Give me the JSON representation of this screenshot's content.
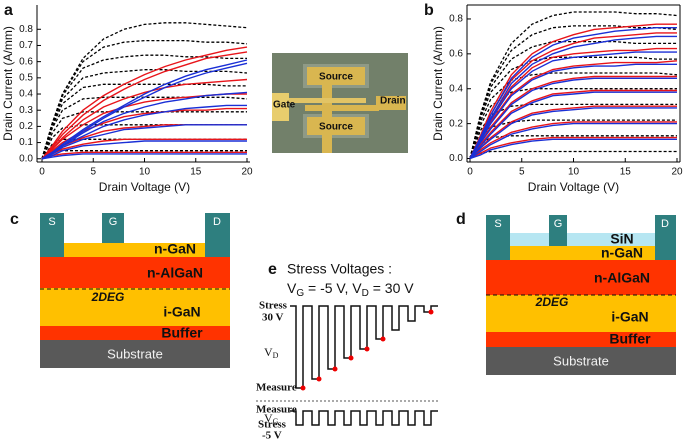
{
  "chart_data": [
    {
      "type": "line",
      "panel": "a",
      "x_label": "Drain Voltage (V)",
      "y_label": "Drain Current (A/mm)",
      "x": [
        0,
        1,
        2,
        4,
        6,
        8,
        10,
        12,
        14,
        16,
        18,
        20
      ],
      "xlim": [
        0,
        20
      ],
      "xticks": [
        0,
        5,
        10,
        15,
        20
      ],
      "ylim": [
        -0.02,
        0.95
      ],
      "yticks": [
        {
          "value": 0,
          "label": "0.0"
        },
        0.1,
        0.2,
        0.3,
        0.4,
        0.5,
        0.6,
        0.7,
        0.8
      ],
      "series": [
        {
          "color": "#000000",
          "dash": true,
          "values": [
            0,
            0.22,
            0.4,
            0.62,
            0.74,
            0.8,
            0.83,
            0.84,
            0.84,
            0.83,
            0.82,
            0.81
          ]
        },
        {
          "color": "#000000",
          "dash": true,
          "values": [
            0,
            0.22,
            0.4,
            0.6,
            0.69,
            0.72,
            0.73,
            0.73,
            0.73,
            0.72,
            0.72,
            0.71
          ]
        },
        {
          "color": "#000000",
          "dash": true,
          "values": [
            0,
            0.22,
            0.39,
            0.56,
            0.61,
            0.63,
            0.64,
            0.64,
            0.63,
            0.63,
            0.62,
            0.62
          ]
        },
        {
          "color": "#000000",
          "dash": true,
          "values": [
            0,
            0.21,
            0.37,
            0.5,
            0.53,
            0.54,
            0.55,
            0.55,
            0.54,
            0.54,
            0.54,
            0.53
          ]
        },
        {
          "color": "#000000",
          "dash": true,
          "values": [
            0,
            0.2,
            0.34,
            0.44,
            0.46,
            0.46,
            0.46,
            0.46,
            0.46,
            0.46,
            0.45,
            0.45
          ]
        },
        {
          "color": "#000000",
          "dash": true,
          "values": [
            0,
            0.19,
            0.3,
            0.37,
            0.38,
            0.38,
            0.38,
            0.38,
            0.38,
            0.38,
            0.38,
            0.37
          ]
        },
        {
          "color": "#000000",
          "dash": true,
          "values": [
            0,
            0.16,
            0.25,
            0.29,
            0.29,
            0.29,
            0.29,
            0.29,
            0.29,
            0.29,
            0.29,
            0.29
          ]
        },
        {
          "color": "#000000",
          "dash": true,
          "values": [
            0,
            0.13,
            0.19,
            0.21,
            0.21,
            0.21,
            0.21,
            0.21,
            0.21,
            0.21,
            0.21,
            0.21
          ]
        },
        {
          "color": "#000000",
          "dash": true,
          "values": [
            0,
            0.09,
            0.12,
            0.12,
            0.12,
            0.12,
            0.12,
            0.12,
            0.12,
            0.12,
            0.12,
            0.12
          ]
        },
        {
          "color": "#000000",
          "dash": true,
          "values": [
            0,
            0.04,
            0.05,
            0.05,
            0.05,
            0.05,
            0.05,
            0.05,
            0.05,
            0.05,
            0.05,
            0.05
          ]
        },
        {
          "color": "#e8141a",
          "values": [
            0,
            0.08,
            0.17,
            0.3,
            0.39,
            0.46,
            0.52,
            0.57,
            0.61,
            0.64,
            0.67,
            0.69
          ]
        },
        {
          "color": "#e8141a",
          "values": [
            0,
            0.07,
            0.15,
            0.27,
            0.36,
            0.43,
            0.49,
            0.54,
            0.58,
            0.62,
            0.64,
            0.66
          ]
        },
        {
          "color": "#e8141a",
          "values": [
            0,
            0.06,
            0.13,
            0.24,
            0.32,
            0.37,
            0.41,
            0.44,
            0.46,
            0.47,
            0.48,
            0.49
          ]
        },
        {
          "color": "#e8141a",
          "values": [
            0,
            0.06,
            0.12,
            0.21,
            0.28,
            0.32,
            0.35,
            0.37,
            0.38,
            0.39,
            0.4,
            0.4
          ]
        },
        {
          "color": "#e8141a",
          "values": [
            0,
            0.05,
            0.1,
            0.17,
            0.22,
            0.26,
            0.28,
            0.29,
            0.3,
            0.3,
            0.31,
            0.31
          ]
        },
        {
          "color": "#e8141a",
          "values": [
            0,
            0.04,
            0.08,
            0.13,
            0.17,
            0.19,
            0.2,
            0.21,
            0.21,
            0.21,
            0.21,
            0.21
          ]
        },
        {
          "color": "#e8141a",
          "values": [
            0,
            0.03,
            0.06,
            0.09,
            0.11,
            0.12,
            0.12,
            0.12,
            0.12,
            0.12,
            0.12,
            0.12
          ]
        },
        {
          "color": "#e8141a",
          "values": [
            0,
            0.02,
            0.03,
            0.04,
            0.04,
            0.04,
            0.04,
            0.04,
            0.04,
            0.04,
            0.04,
            0.04
          ]
        },
        {
          "color": "#1a2fd6",
          "values": [
            0,
            0.04,
            0.09,
            0.18,
            0.26,
            0.33,
            0.4,
            0.46,
            0.51,
            0.55,
            0.58,
            0.61
          ]
        },
        {
          "color": "#1a2fd6",
          "values": [
            0,
            0.04,
            0.08,
            0.17,
            0.25,
            0.32,
            0.38,
            0.44,
            0.49,
            0.53,
            0.56,
            0.59
          ]
        },
        {
          "color": "#1a2fd6",
          "values": [
            0,
            0.04,
            0.08,
            0.16,
            0.23,
            0.28,
            0.32,
            0.35,
            0.37,
            0.39,
            0.4,
            0.41
          ]
        },
        {
          "color": "#1a2fd6",
          "values": [
            0,
            0.04,
            0.08,
            0.14,
            0.2,
            0.24,
            0.27,
            0.29,
            0.31,
            0.32,
            0.33,
            0.33
          ]
        },
        {
          "color": "#1a2fd6",
          "values": [
            0,
            0.03,
            0.07,
            0.12,
            0.15,
            0.18,
            0.19,
            0.2,
            0.21,
            0.21,
            0.21,
            0.21
          ]
        },
        {
          "color": "#1a2fd6",
          "values": [
            0,
            0.02,
            0.05,
            0.08,
            0.09,
            0.1,
            0.11,
            0.11,
            0.11,
            0.11,
            0.11,
            0.11
          ]
        },
        {
          "color": "#1a2fd6",
          "values": [
            0,
            0.01,
            0.02,
            0.03,
            0.03,
            0.03,
            0.03,
            0.03,
            0.03,
            0.03,
            0.03,
            0.03
          ]
        }
      ]
    },
    {
      "type": "line",
      "panel": "b",
      "x_label": "Drain Voltage (V)",
      "y_label": "Drain Current (A/mm)",
      "x": [
        0,
        1,
        2,
        4,
        6,
        8,
        10,
        12,
        14,
        16,
        18,
        20
      ],
      "xlim": [
        0,
        20
      ],
      "xticks": [
        0,
        5,
        10,
        15,
        20
      ],
      "ylim": [
        -0.02,
        0.88
      ],
      "yticks": [
        {
          "value": 0,
          "label": "0.0"
        },
        0.2,
        0.4,
        0.6,
        0.8
      ],
      "series": [
        {
          "color": "#000000",
          "dash": true,
          "values": [
            0,
            0.25,
            0.44,
            0.66,
            0.77,
            0.82,
            0.84,
            0.84,
            0.84,
            0.83,
            0.83,
            0.82
          ]
        },
        {
          "color": "#000000",
          "dash": true,
          "values": [
            0,
            0.25,
            0.43,
            0.62,
            0.71,
            0.75,
            0.76,
            0.76,
            0.76,
            0.75,
            0.75,
            0.74
          ]
        },
        {
          "color": "#000000",
          "dash": true,
          "values": [
            0,
            0.24,
            0.41,
            0.57,
            0.64,
            0.67,
            0.67,
            0.67,
            0.67,
            0.66,
            0.66,
            0.66
          ]
        },
        {
          "color": "#000000",
          "dash": true,
          "values": [
            0,
            0.23,
            0.38,
            0.51,
            0.56,
            0.58,
            0.58,
            0.58,
            0.58,
            0.58,
            0.57,
            0.57
          ]
        },
        {
          "color": "#000000",
          "dash": true,
          "values": [
            0,
            0.21,
            0.34,
            0.45,
            0.48,
            0.49,
            0.49,
            0.49,
            0.49,
            0.49,
            0.49,
            0.48
          ]
        },
        {
          "color": "#000000",
          "dash": true,
          "values": [
            0,
            0.19,
            0.3,
            0.38,
            0.4,
            0.4,
            0.4,
            0.4,
            0.4,
            0.4,
            0.4,
            0.4
          ]
        },
        {
          "color": "#000000",
          "dash": true,
          "values": [
            0,
            0.16,
            0.25,
            0.3,
            0.31,
            0.31,
            0.31,
            0.31,
            0.31,
            0.31,
            0.31,
            0.31
          ]
        },
        {
          "color": "#000000",
          "dash": true,
          "values": [
            0,
            0.12,
            0.18,
            0.21,
            0.22,
            0.22,
            0.22,
            0.22,
            0.22,
            0.22,
            0.22,
            0.22
          ]
        },
        {
          "color": "#000000",
          "dash": true,
          "values": [
            0,
            0.08,
            0.12,
            0.13,
            0.13,
            0.13,
            0.13,
            0.13,
            0.13,
            0.13,
            0.13,
            0.13
          ]
        },
        {
          "color": "#000000",
          "dash": true,
          "values": [
            0,
            0.03,
            0.04,
            0.04,
            0.04,
            0.04,
            0.04,
            0.04,
            0.04,
            0.04,
            0.04,
            0.04
          ]
        },
        {
          "color": "#e8141a",
          "values": [
            0,
            0.13,
            0.27,
            0.48,
            0.6,
            0.67,
            0.71,
            0.74,
            0.75,
            0.76,
            0.77,
            0.77
          ]
        },
        {
          "color": "#e8141a",
          "values": [
            0,
            0.12,
            0.25,
            0.45,
            0.56,
            0.62,
            0.66,
            0.69,
            0.7,
            0.71,
            0.72,
            0.72
          ]
        },
        {
          "color": "#e8141a",
          "values": [
            0,
            0.11,
            0.23,
            0.41,
            0.52,
            0.58,
            0.6,
            0.61,
            0.62,
            0.62,
            0.63,
            0.63
          ]
        },
        {
          "color": "#e8141a",
          "values": [
            0,
            0.1,
            0.21,
            0.37,
            0.46,
            0.51,
            0.53,
            0.54,
            0.55,
            0.55,
            0.55,
            0.56
          ]
        },
        {
          "color": "#e8141a",
          "values": [
            0,
            0.09,
            0.18,
            0.32,
            0.4,
            0.44,
            0.46,
            0.47,
            0.47,
            0.47,
            0.47,
            0.47
          ]
        },
        {
          "color": "#e8141a",
          "values": [
            0,
            0.08,
            0.15,
            0.27,
            0.33,
            0.37,
            0.38,
            0.39,
            0.39,
            0.39,
            0.39,
            0.39
          ]
        },
        {
          "color": "#e8141a",
          "values": [
            0,
            0.06,
            0.12,
            0.21,
            0.26,
            0.28,
            0.29,
            0.3,
            0.3,
            0.3,
            0.3,
            0.3
          ]
        },
        {
          "color": "#e8141a",
          "values": [
            0,
            0.05,
            0.09,
            0.15,
            0.18,
            0.2,
            0.21,
            0.21,
            0.21,
            0.21,
            0.21,
            0.21
          ]
        },
        {
          "color": "#e8141a",
          "values": [
            0,
            0.03,
            0.06,
            0.09,
            0.11,
            0.12,
            0.12,
            0.12,
            0.12,
            0.12,
            0.12,
            0.12
          ]
        },
        {
          "color": "#1a2fd6",
          "values": [
            0,
            0.12,
            0.25,
            0.46,
            0.58,
            0.65,
            0.69,
            0.71,
            0.73,
            0.74,
            0.75,
            0.75
          ]
        },
        {
          "color": "#1a2fd6",
          "values": [
            0,
            0.11,
            0.23,
            0.43,
            0.54,
            0.6,
            0.64,
            0.66,
            0.68,
            0.69,
            0.7,
            0.7
          ]
        },
        {
          "color": "#1a2fd6",
          "values": [
            0,
            0.1,
            0.22,
            0.4,
            0.5,
            0.56,
            0.58,
            0.59,
            0.6,
            0.61,
            0.61,
            0.61
          ]
        },
        {
          "color": "#1a2fd6",
          "values": [
            0,
            0.1,
            0.2,
            0.36,
            0.45,
            0.5,
            0.52,
            0.53,
            0.53,
            0.54,
            0.54,
            0.54
          ]
        },
        {
          "color": "#1a2fd6",
          "values": [
            0,
            0.09,
            0.17,
            0.31,
            0.39,
            0.43,
            0.45,
            0.46,
            0.46,
            0.46,
            0.46,
            0.46
          ]
        },
        {
          "color": "#1a2fd6",
          "values": [
            0,
            0.07,
            0.14,
            0.26,
            0.32,
            0.36,
            0.37,
            0.38,
            0.38,
            0.38,
            0.38,
            0.38
          ]
        },
        {
          "color": "#1a2fd6",
          "values": [
            0,
            0.06,
            0.11,
            0.2,
            0.25,
            0.27,
            0.28,
            0.29,
            0.29,
            0.29,
            0.29,
            0.29
          ]
        },
        {
          "color": "#1a2fd6",
          "values": [
            0,
            0.04,
            0.08,
            0.14,
            0.17,
            0.19,
            0.2,
            0.2,
            0.2,
            0.2,
            0.2,
            0.2
          ]
        },
        {
          "color": "#1a2fd6",
          "values": [
            0,
            0.02,
            0.05,
            0.08,
            0.1,
            0.11,
            0.11,
            0.11,
            0.11,
            0.11,
            0.11,
            0.11
          ]
        }
      ]
    }
  ],
  "micrograph": {
    "labels": [
      "Gate",
      "Source",
      "Source",
      "Drain"
    ]
  },
  "panel_c": {
    "panel": "c",
    "contacts": [
      "S",
      "G",
      "D"
    ],
    "layers": [
      "n-GaN",
      "n-AlGaN",
      "2DEG",
      "i-GaN",
      "Buffer",
      "Substrate"
    ]
  },
  "panel_d": {
    "panel": "d",
    "contacts": [
      "S",
      "G",
      "D"
    ],
    "layers": [
      "SiN",
      "n-GaN",
      "n-AlGaN",
      "2DEG",
      "i-GaN",
      "Buffer",
      "Substrate"
    ]
  },
  "panel_e": {
    "panel": "e",
    "title": "Stress Voltages :",
    "condition": [
      "V",
      "G",
      " = -5 V, V",
      "D",
      " = 30 V"
    ],
    "vd_labels": [
      "Stress",
      "30 V",
      "V",
      "D",
      "Measure"
    ],
    "vg_labels": [
      "Measure",
      "V",
      "G",
      "Stress",
      "-5 V"
    ]
  }
}
